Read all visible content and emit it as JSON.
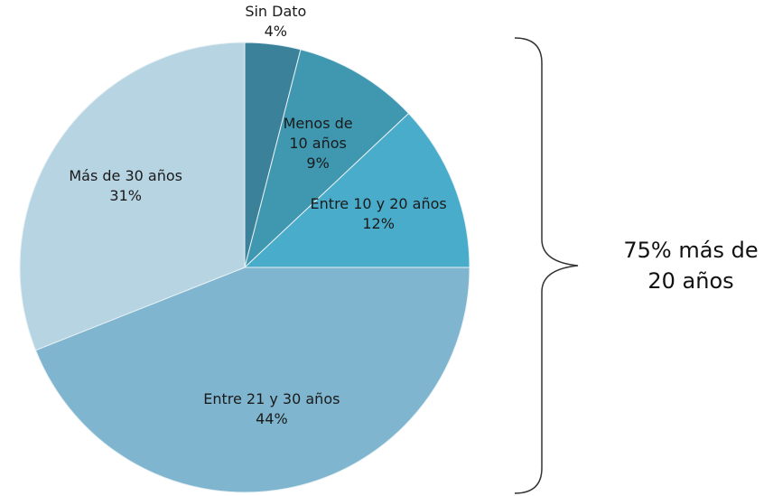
{
  "chart_data": {
    "type": "pie",
    "categories": [
      "Sin Dato",
      "Menos de 10 años",
      "Entre 10 y 20 años",
      "Entre 21 y 30 años",
      "Más de 30 años"
    ],
    "values": [
      4,
      9,
      12,
      44,
      31
    ],
    "value_labels": [
      "4%",
      "9%",
      "12%",
      "44%",
      "31%"
    ],
    "colors": [
      "#3a8199",
      "#3f97b0",
      "#4aaccb",
      "#7fb5cf",
      "#b7d4e3"
    ],
    "annotation": "75% más de 20 años"
  }
}
